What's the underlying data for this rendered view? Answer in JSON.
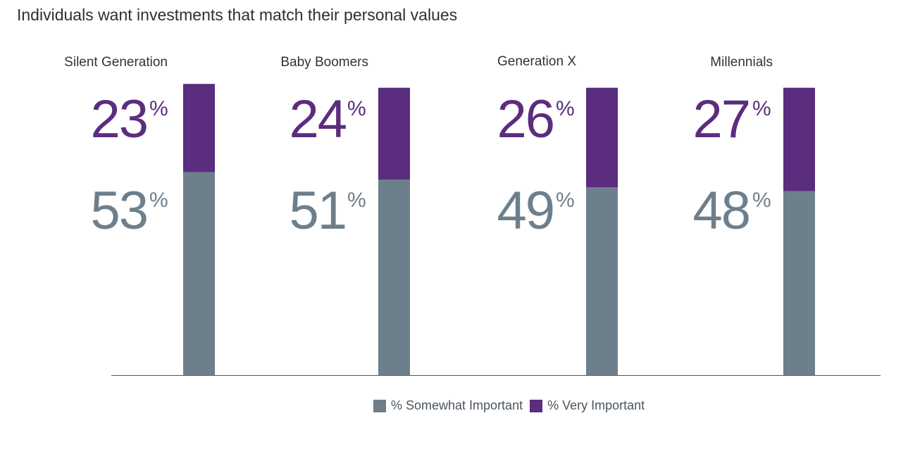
{
  "title": "Individuals want investments that match their personal values",
  "colors": {
    "somewhat": "#6e7f8c",
    "very": "#5b2d7e",
    "axis": "#555555"
  },
  "percent_sign": "%",
  "legend": {
    "somewhat_label": "% Somewhat Important",
    "very_label": "% Very Important"
  },
  "chart_data": {
    "type": "bar",
    "stacked": true,
    "title": "Individuals want investments that match their personal values",
    "categories": [
      "Silent Generation",
      "Baby Boomers",
      "Generation X",
      "Millennials"
    ],
    "series": [
      {
        "name": "% Somewhat Important",
        "values": [
          53,
          51,
          49,
          48
        ],
        "display": [
          "53",
          "51",
          "49",
          "48"
        ]
      },
      {
        "name": "% Very Important",
        "values": [
          23,
          24,
          26,
          27
        ],
        "display": [
          "23",
          "24",
          "26",
          "27"
        ]
      }
    ],
    "ylim": [
      0,
      80
    ],
    "xlabel": "",
    "ylabel": "",
    "legend_position": "bottom-center",
    "grid": false
  }
}
